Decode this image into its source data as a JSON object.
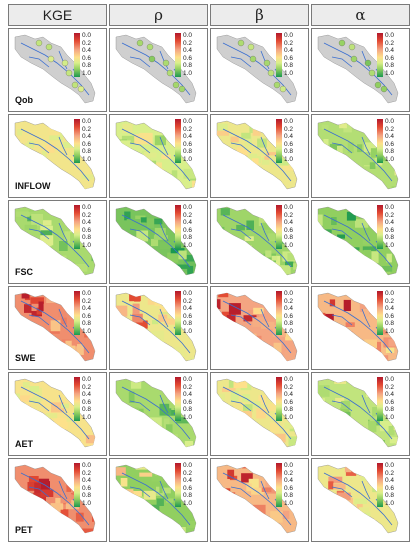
{
  "columns": [
    {
      "label": "KGE"
    },
    {
      "label": "ρ"
    },
    {
      "label": "β"
    },
    {
      "label": "α"
    }
  ],
  "rows": [
    {
      "label": "Qob"
    },
    {
      "label": "INFLOW"
    },
    {
      "label": "FSC"
    },
    {
      "label": "SWE"
    },
    {
      "label": "AET"
    },
    {
      "label": "PET"
    }
  ],
  "colorbar": {
    "ticks": [
      "0.0",
      "0.2",
      "0.4",
      "0.6",
      "0.8",
      "1.0"
    ]
  },
  "scores": [
    [
      0.75,
      0.8,
      0.78,
      0.82
    ],
    [
      0.6,
      0.7,
      0.62,
      0.78
    ],
    [
      0.8,
      0.88,
      0.82,
      0.85
    ],
    [
      0.35,
      0.62,
      0.4,
      0.45
    ],
    [
      0.58,
      0.8,
      0.62,
      0.75
    ],
    [
      0.35,
      0.85,
      0.45,
      0.62
    ]
  ],
  "colors": {
    "river": "#3a6fd0",
    "nodata": "#cfcfcf",
    "border": "#7a7a7a"
  }
}
